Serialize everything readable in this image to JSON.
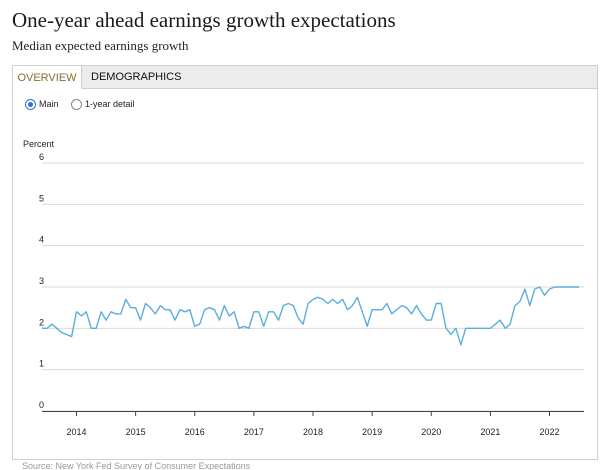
{
  "header": {
    "title": "One-year ahead earnings growth expectations",
    "subtitle": "Median expected earnings growth"
  },
  "tabs": [
    {
      "label": "OVERVIEW",
      "active": true
    },
    {
      "label": "DEMOGRAPHICS",
      "active": false
    }
  ],
  "view_options": {
    "main_label": "Main",
    "detail_label": "1-year detail",
    "selected": "Main"
  },
  "colors": {
    "line": "#5aaede",
    "active_tab_text": "#8a6d2b",
    "gridline": "#d9d9d9"
  },
  "chart_data": {
    "type": "line",
    "title": "",
    "xlabel": "",
    "ylabel": "Percent",
    "ylim": [
      0,
      6
    ],
    "yticks": [
      0,
      1,
      2,
      3,
      4,
      5,
      6
    ],
    "xlim": [
      "2013-06",
      "2022-08"
    ],
    "xticks": [
      "2014",
      "2015",
      "2016",
      "2017",
      "2018",
      "2019",
      "2020",
      "2021",
      "2022"
    ],
    "grid": true,
    "legend": "none",
    "series": [
      {
        "name": "",
        "x": [
          "2013-06",
          "2013-07",
          "2013-08",
          "2013-09",
          "2013-10",
          "2013-11",
          "2013-12",
          "2014-01",
          "2014-02",
          "2014-03",
          "2014-04",
          "2014-05",
          "2014-06",
          "2014-07",
          "2014-08",
          "2014-09",
          "2014-10",
          "2014-11",
          "2014-12",
          "2015-01",
          "2015-02",
          "2015-03",
          "2015-04",
          "2015-05",
          "2015-06",
          "2015-07",
          "2015-08",
          "2015-09",
          "2015-10",
          "2015-11",
          "2015-12",
          "2016-01",
          "2016-02",
          "2016-03",
          "2016-04",
          "2016-05",
          "2016-06",
          "2016-07",
          "2016-08",
          "2016-09",
          "2016-10",
          "2016-11",
          "2016-12",
          "2017-01",
          "2017-02",
          "2017-03",
          "2017-04",
          "2017-05",
          "2017-06",
          "2017-07",
          "2017-08",
          "2017-09",
          "2017-10",
          "2017-11",
          "2017-12",
          "2018-01",
          "2018-02",
          "2018-03",
          "2018-04",
          "2018-05",
          "2018-06",
          "2018-07",
          "2018-08",
          "2018-09",
          "2018-10",
          "2018-11",
          "2018-12",
          "2019-01",
          "2019-02",
          "2019-03",
          "2019-04",
          "2019-05",
          "2019-06",
          "2019-07",
          "2019-08",
          "2019-09",
          "2019-10",
          "2019-11",
          "2019-12",
          "2020-01",
          "2020-02",
          "2020-03",
          "2020-04",
          "2020-05",
          "2020-06",
          "2020-07",
          "2020-08",
          "2020-09",
          "2020-10",
          "2020-11",
          "2020-12",
          "2021-01",
          "2021-02",
          "2021-03",
          "2021-04",
          "2021-05",
          "2021-06",
          "2021-07",
          "2021-08",
          "2021-09",
          "2021-10",
          "2021-11",
          "2021-12",
          "2022-01",
          "2022-02",
          "2022-03",
          "2022-04",
          "2022-05",
          "2022-06",
          "2022-07"
        ],
        "values": [
          2.0,
          2.0,
          2.1,
          2.0,
          1.9,
          1.85,
          1.8,
          2.4,
          2.3,
          2.4,
          2.0,
          2.0,
          2.4,
          2.2,
          2.4,
          2.35,
          2.35,
          2.7,
          2.5,
          2.5,
          2.2,
          2.6,
          2.5,
          2.35,
          2.55,
          2.45,
          2.45,
          2.2,
          2.45,
          2.4,
          2.45,
          2.05,
          2.1,
          2.45,
          2.5,
          2.45,
          2.2,
          2.55,
          2.3,
          2.4,
          2.0,
          2.05,
          2.0,
          2.4,
          2.4,
          2.05,
          2.4,
          2.4,
          2.2,
          2.55,
          2.6,
          2.55,
          2.25,
          2.1,
          2.6,
          2.7,
          2.75,
          2.7,
          2.6,
          2.7,
          2.6,
          2.7,
          2.45,
          2.55,
          2.75,
          2.4,
          2.05,
          2.45,
          2.45,
          2.45,
          2.6,
          2.35,
          2.45,
          2.55,
          2.5,
          2.35,
          2.55,
          2.35,
          2.2,
          2.2,
          2.6,
          2.6,
          2.0,
          1.85,
          2.0,
          1.6,
          2.0,
          2.0,
          2.0,
          2.0,
          2.0,
          2.0,
          2.1,
          2.2,
          2.0,
          2.1,
          2.55,
          2.65,
          2.95,
          2.55,
          2.95,
          3.0,
          2.8,
          2.95,
          3.0,
          3.0,
          3.0,
          3.0,
          3.0,
          3.0
        ]
      }
    ],
    "source": "Source: New York Fed Survey of Consumer Expectations"
  }
}
